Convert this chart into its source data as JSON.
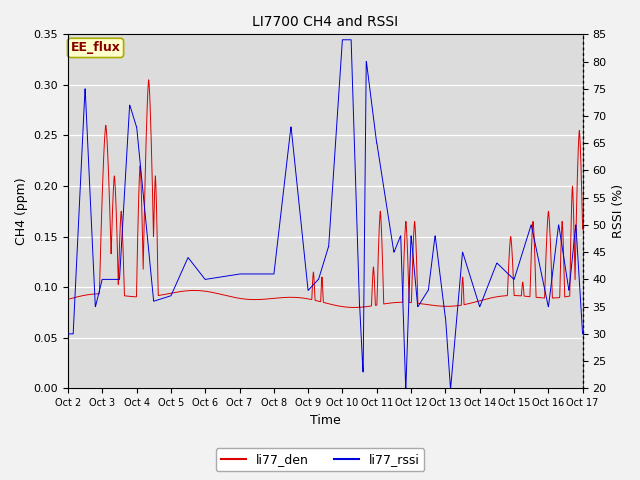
{
  "title": "LI7700 CH4 and RSSI",
  "xlabel": "Time",
  "ylabel_left": "CH4 (ppm)",
  "ylabel_right": "RSSI (%)",
  "ylim_left": [
    0.0,
    0.35
  ],
  "ylim_right": [
    20,
    85
  ],
  "yticks_left": [
    0.0,
    0.05,
    0.1,
    0.15,
    0.2,
    0.25,
    0.3,
    0.35
  ],
  "yticks_right": [
    20,
    25,
    30,
    35,
    40,
    45,
    50,
    55,
    60,
    65,
    70,
    75,
    80,
    85
  ],
  "xtick_labels": [
    "Oct 2",
    "Oct 3",
    "Oct 4",
    "Oct 5",
    "Oct 6",
    "Oct 7",
    "Oct 8",
    "Oct 9",
    "Oct 10",
    "Oct 11",
    "Oct 12",
    "Oct 13",
    "Oct 14",
    "Oct 15",
    "Oct 16",
    "Oct 17"
  ],
  "color_red": "#dd0000",
  "color_blue": "#0000dd",
  "fig_bg": "#f2f2f2",
  "plot_bg": "#dcdcdc",
  "grid_color": "#ffffff",
  "annotation_text": "EE_flux",
  "annotation_bg": "#ffffcc",
  "annotation_border": "#aaaa00",
  "legend_red": "li77_den",
  "legend_blue": "li77_rssi",
  "title_fontsize": 10,
  "axis_fontsize": 9,
  "tick_fontsize": 8,
  "legend_fontsize": 9
}
